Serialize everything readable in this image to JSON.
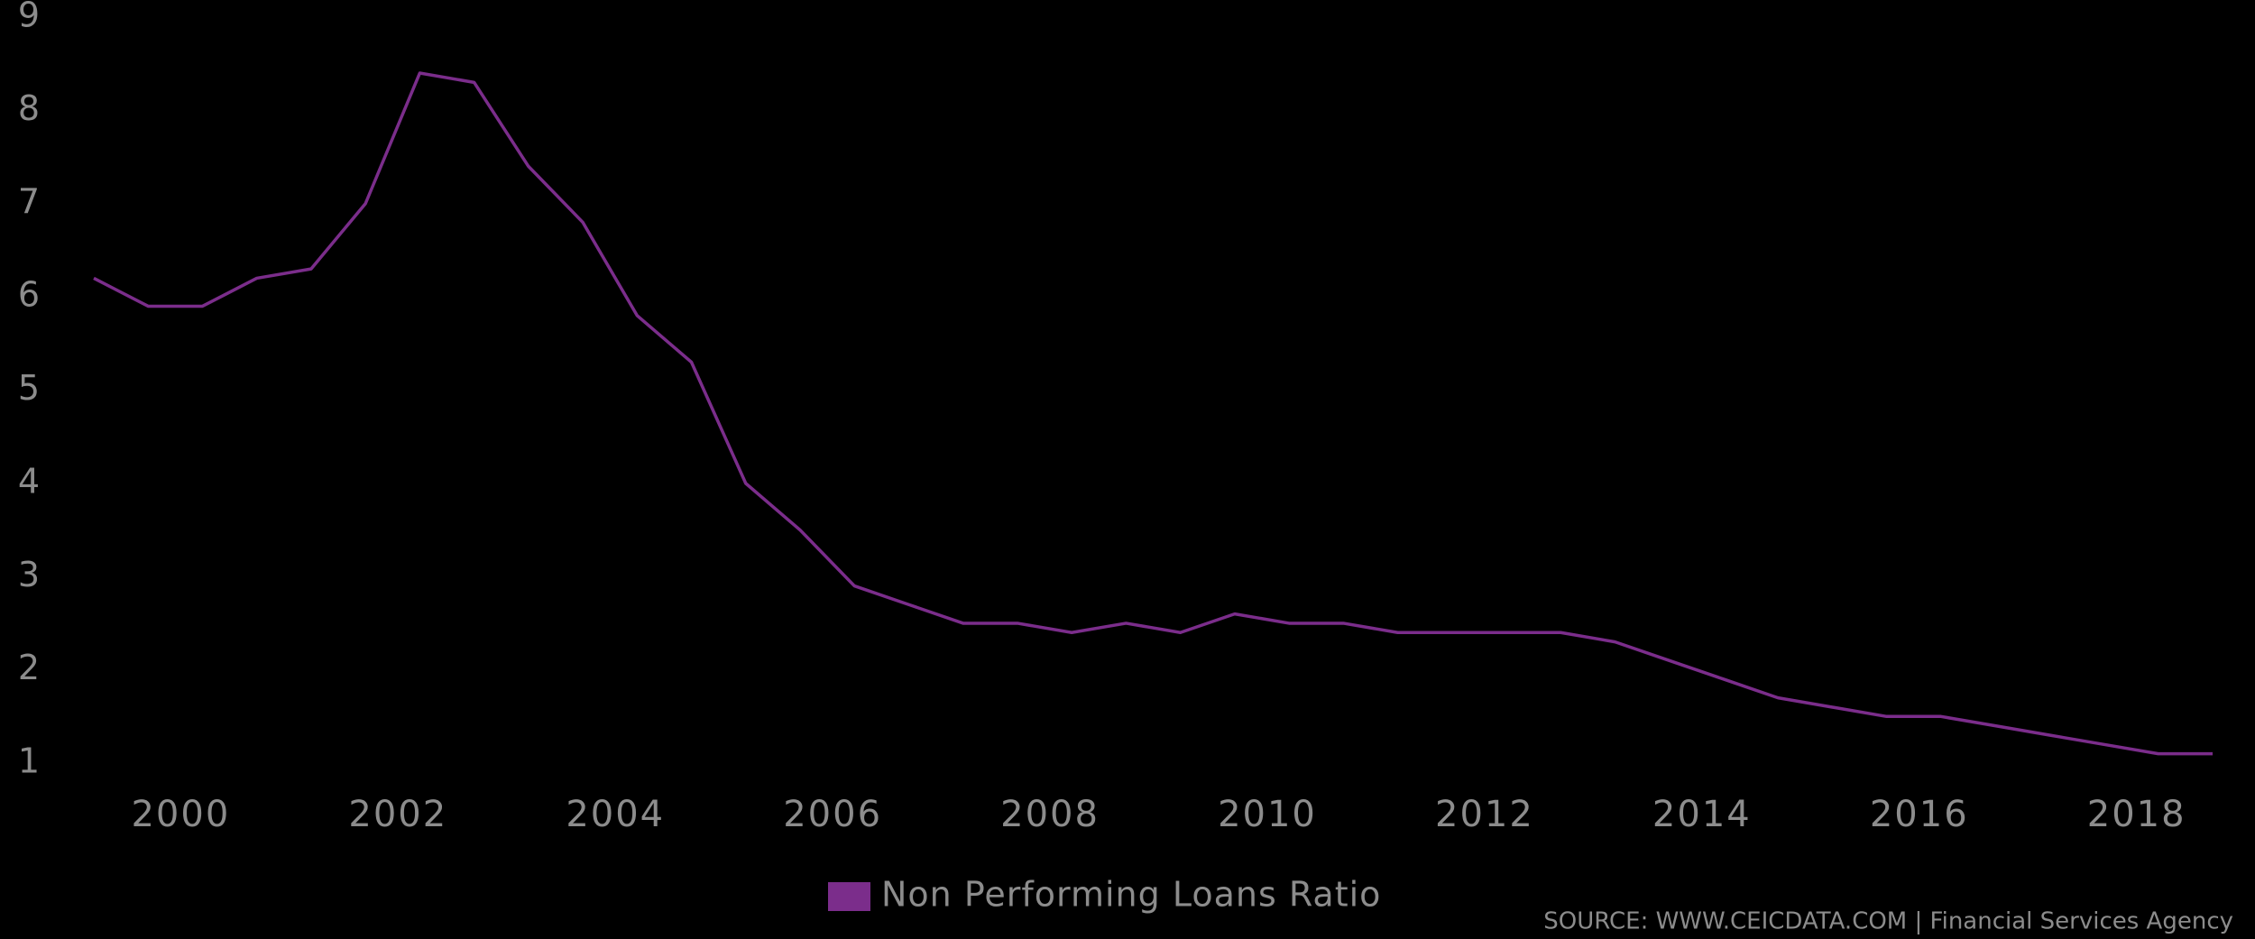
{
  "chart_data": {
    "type": "line",
    "x": [
      1999.2,
      1999.7,
      2000.2,
      2000.7,
      2001.2,
      2001.7,
      2002.2,
      2002.7,
      2003.2,
      2003.7,
      2004.2,
      2004.7,
      2005.2,
      2005.7,
      2006.2,
      2006.7,
      2007.2,
      2007.7,
      2008.2,
      2008.7,
      2009.2,
      2009.7,
      2010.2,
      2010.7,
      2011.2,
      2011.7,
      2012.2,
      2012.7,
      2013.2,
      2013.7,
      2014.2,
      2014.7,
      2015.2,
      2015.7,
      2016.2,
      2016.7,
      2017.2,
      2017.7,
      2018.2,
      2018.7
    ],
    "series": [
      {
        "name": "Non Performing Loans Ratio",
        "color": "#7b2d8b",
        "values": [
          6.2,
          5.9,
          5.9,
          6.2,
          6.3,
          7.0,
          8.4,
          8.3,
          7.4,
          6.8,
          5.8,
          5.3,
          4.0,
          3.5,
          2.9,
          2.7,
          2.5,
          2.5,
          2.4,
          2.5,
          2.4,
          2.6,
          2.5,
          2.5,
          2.4,
          2.4,
          2.4,
          2.4,
          2.3,
          2.1,
          1.9,
          1.7,
          1.6,
          1.5,
          1.5,
          1.4,
          1.3,
          1.2,
          1.1,
          1.1
        ]
      }
    ],
    "xlim": [
      1999.2,
      2018.7
    ],
    "xticks": [
      2000,
      2002,
      2004,
      2006,
      2008,
      2010,
      2012,
      2014,
      2016,
      2018
    ],
    "ylim": [
      1,
      9
    ],
    "yticks": [
      1,
      2,
      3,
      4,
      5,
      6,
      7,
      8,
      9
    ],
    "grid": false,
    "legend": "bottom",
    "source": "SOURCE: WWW.CEICDATA.COM | Financial Services Agency"
  }
}
